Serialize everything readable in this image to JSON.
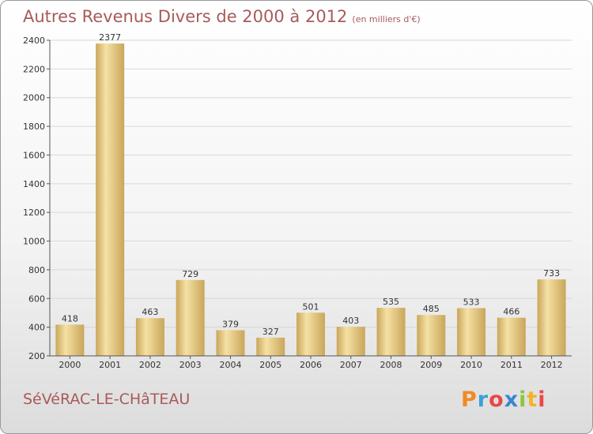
{
  "header": {
    "title": "Autres Revenus Divers de 2000 à 2012",
    "unit": "(en milliers d'€)"
  },
  "footer": {
    "town": "SéVéRAC-LE-CHâTEAU",
    "logo": "Proxiti"
  },
  "colors": {
    "title": "#a85a5a",
    "bar_light": "#f5e1a4",
    "bar_dark": "#c9a65a"
  },
  "chart_data": {
    "type": "bar",
    "title": "Autres Revenus Divers de 2000 à 2012",
    "subtitle": "(en milliers d'€)",
    "categories": [
      "2000",
      "2001",
      "2002",
      "2003",
      "2004",
      "2005",
      "2006",
      "2007",
      "2008",
      "2009",
      "2010",
      "2011",
      "2012"
    ],
    "values": [
      418,
      2377,
      463,
      729,
      379,
      327,
      501,
      403,
      535,
      485,
      533,
      466,
      733
    ],
    "ylim": [
      200,
      2400
    ],
    "yticks": [
      200,
      400,
      600,
      800,
      1000,
      1200,
      1400,
      1600,
      1800,
      2000,
      2200,
      2400
    ],
    "grid": true
  }
}
